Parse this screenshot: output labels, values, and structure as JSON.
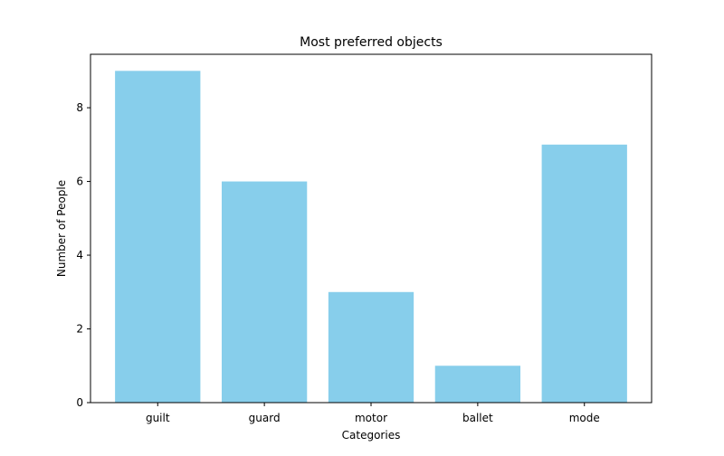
{
  "chart_data": {
    "type": "bar",
    "title": "Most preferred objects",
    "xlabel": "Categories",
    "ylabel": "Number of People",
    "categories": [
      "guilt",
      "guard",
      "motor",
      "ballet",
      "mode"
    ],
    "values": [
      9,
      6,
      3,
      1,
      7
    ],
    "ylim": [
      0,
      9.45
    ],
    "yticks": [
      0,
      2,
      4,
      6,
      8
    ],
    "grid": false,
    "bar_color": "#87CEEB"
  }
}
